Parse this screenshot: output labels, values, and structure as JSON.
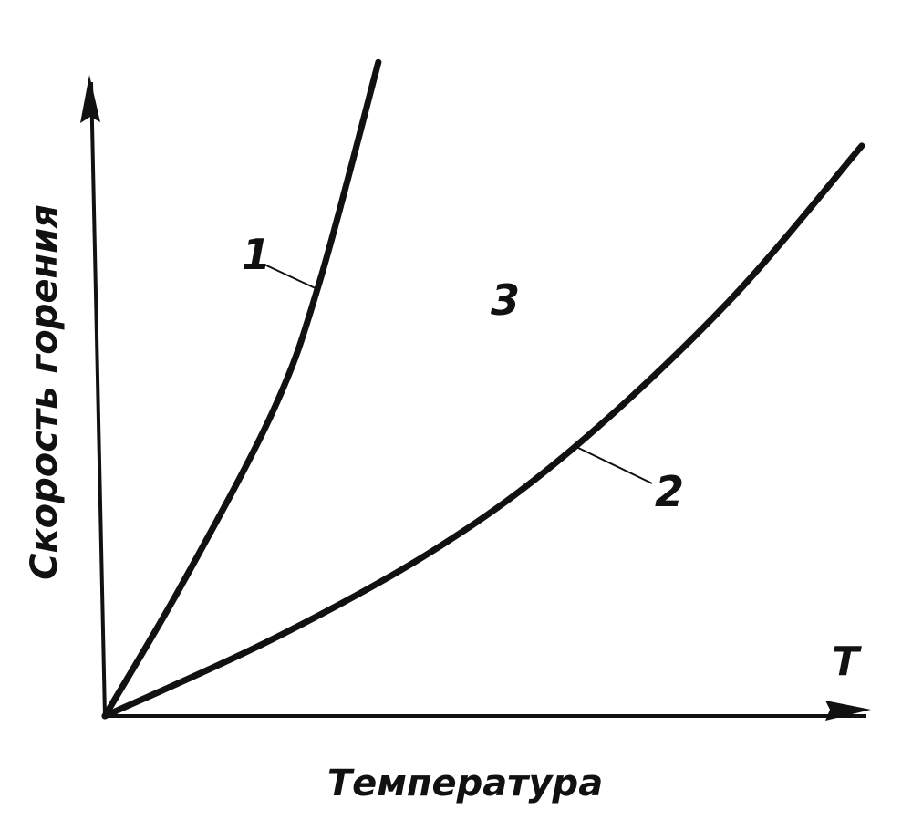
{
  "chart_data": {
    "type": "line",
    "title": "",
    "xlabel": "Температура",
    "ylabel": "Скорость горения",
    "x_axis_symbol": "T",
    "xlim": [
      0,
      100
    ],
    "ylim": [
      0,
      105
    ],
    "grid": false,
    "ticks": false,
    "line_color": "#111111",
    "background": "#ffffff",
    "series": [
      {
        "name": "1",
        "x": [
          0,
          10.1,
          22,
          28,
          35.7
        ],
        "y": [
          0,
          20.7,
          47.9,
          67.9,
          102.4
        ]
      },
      {
        "name": "2",
        "x": [
          0,
          22,
          43.5,
          61.3,
          81.5,
          98.8
        ],
        "y": [
          0,
          12.1,
          26.4,
          42.1,
          65,
          89.3
        ]
      }
    ],
    "annotations": [
      {
        "text": "3",
        "meaning": "region between curves"
      }
    ]
  }
}
